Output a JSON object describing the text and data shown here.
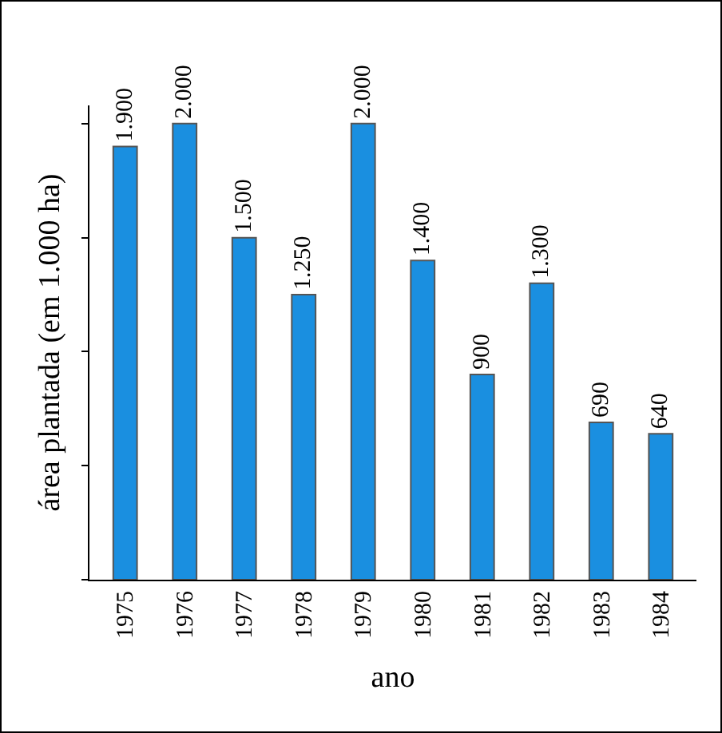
{
  "chart_data": {
    "type": "bar",
    "xlabel": "ano",
    "ylabel": "área plantada (em 1.000 ha)",
    "categories": [
      "1975",
      "1976",
      "1977",
      "1978",
      "1979",
      "1980",
      "1981",
      "1982",
      "1983",
      "1984"
    ],
    "values": [
      1900,
      2000,
      1500,
      1250,
      2000,
      1400,
      900,
      1300,
      690,
      640
    ],
    "value_labels": [
      "1.900",
      "2.000",
      "1.500",
      "1.250",
      "2.000",
      "1.400",
      "900",
      "1.300",
      "690",
      "640"
    ],
    "color": "#1a8fe0",
    "ylim": [
      0,
      2080
    ],
    "tick_labels": "x"
  }
}
